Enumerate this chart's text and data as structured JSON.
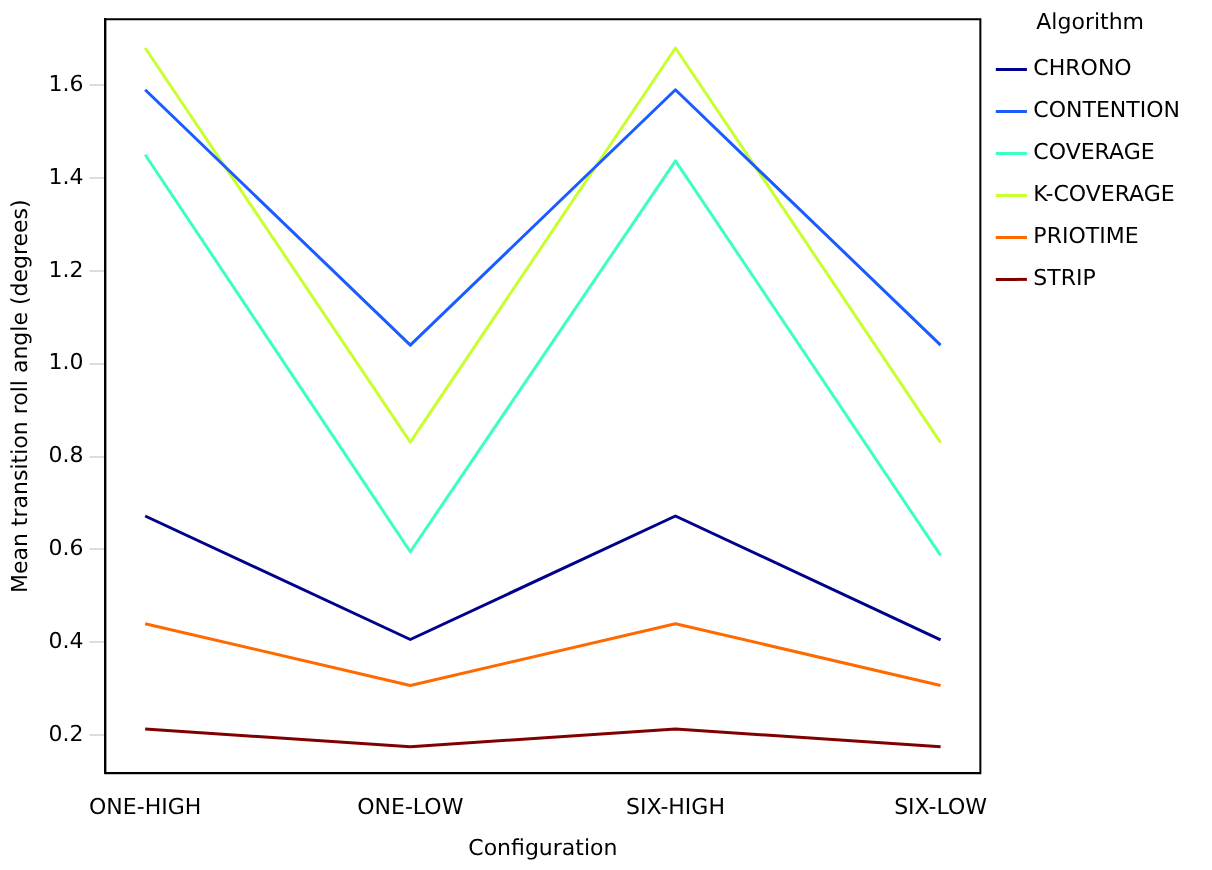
{
  "chart_data": {
    "type": "line",
    "xlabel": "Configuration",
    "ylabel": "Mean transition roll angle (degrees)",
    "legend_title": "Algorithm",
    "legend": "right",
    "grid": false,
    "marker": "none",
    "line_style": "solid",
    "categories": [
      "ONE-HIGH",
      "ONE-LOW",
      "SIX-HIGH",
      "SIX-LOW"
    ],
    "ylim": [
      0.118,
      1.742
    ],
    "yticks": [
      0.2,
      0.4,
      0.6,
      0.8,
      {
        "value": 1,
        "label": "1.0"
      },
      1.2,
      1.4,
      1.6
    ],
    "series": [
      {
        "name": "CHRONO",
        "color": "#00008b",
        "values": [
          0.672,
          0.406,
          0.672,
          0.405
        ]
      },
      {
        "name": "CONTENTION",
        "color": "#1a5cff",
        "values": [
          1.59,
          1.04,
          1.59,
          1.04
        ]
      },
      {
        "name": "COVERAGE",
        "color": "#3dffc4",
        "values": [
          1.45,
          0.595,
          1.437,
          0.587
        ]
      },
      {
        "name": "K-COVERAGE",
        "color": "#c8ff2f",
        "values": [
          1.68,
          0.831,
          1.68,
          0.83
        ]
      },
      {
        "name": "PRIOTIME",
        "color": "#ff6a00",
        "values": [
          0.44,
          0.307,
          0.44,
          0.307
        ]
      },
      {
        "name": "STRIP",
        "color": "#800000",
        "values": [
          0.213,
          0.175,
          0.213,
          0.175
        ]
      }
    ]
  }
}
